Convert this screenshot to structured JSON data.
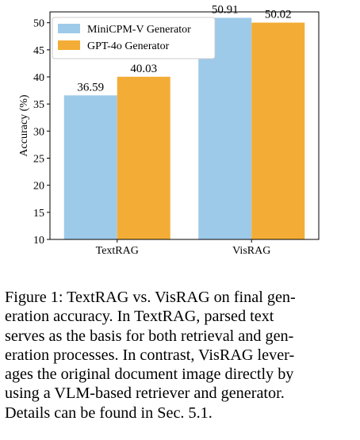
{
  "chart_data": {
    "type": "bar",
    "categories": [
      "TextRAG",
      "VisRAG"
    ],
    "series": [
      {
        "name": "MiniCPM-V Generator",
        "values": [
          36.59,
          50.91
        ],
        "color": "#9ecae9"
      },
      {
        "name": "GPT-4o Generator",
        "values": [
          40.03,
          50.02
        ],
        "color": "#f3ad36"
      }
    ],
    "value_labels": [
      [
        "36.59",
        "50.91"
      ],
      [
        "40.03",
        "50.02"
      ]
    ],
    "xlabel": "",
    "ylabel": "Accuracy (%)",
    "ylim": [
      10,
      52
    ],
    "yticks": [
      10,
      15,
      20,
      25,
      30,
      35,
      40,
      45,
      50
    ],
    "legend_position": "top-left",
    "grid": false
  },
  "caption": {
    "lines": [
      "Figure 1: TextRAG vs. VisRAG on final gen-",
      "eration accuracy.  In TextRAG, parsed text",
      "serves as the basis for both retrieval and gen-",
      "eration processes. In contrast, VisRAG lever-",
      "ages the original document image directly by",
      "using a VLM-based retriever and generator.",
      "Details can be found in Sec. 5.1."
    ]
  }
}
